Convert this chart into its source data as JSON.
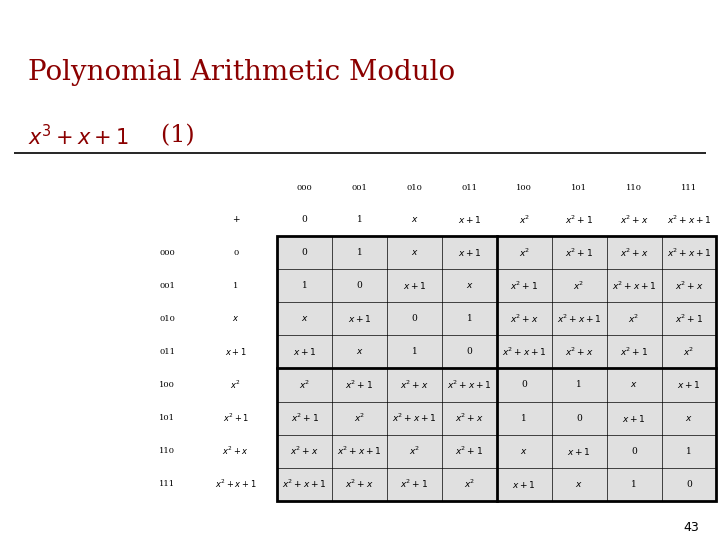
{
  "title_line1": "Polynomial Arithmetic Modulo",
  "title_line2_math": "$x^3+x+1$",
  "title_line2_text": "  (1)",
  "title_color": "#8B0000",
  "bg_color": "#ffffff",
  "slide_header_color1": "#9B9966",
  "slide_header_color2": "#800000",
  "page_number": "43",
  "col_headers_binary": [
    "000",
    "001",
    "010",
    "011",
    "100",
    "101",
    "110",
    "111"
  ],
  "col_headers_poly": [
    "0",
    "1",
    "$x$",
    "$x+1$",
    "$x^2$",
    "$x^2+1$",
    "$x^2+x$",
    "$x^2+x+1$"
  ],
  "row_headers_binary": [
    "000",
    "001",
    "010",
    "011",
    "100",
    "101",
    "110",
    "111"
  ],
  "row_headers_poly": [
    "0",
    "1",
    "$x$",
    "$x+1$",
    "$x^2$",
    "$x^2+1$",
    "$x^2+x$",
    "$x^2+x+1$"
  ],
  "operator": "+",
  "table_data": [
    [
      "0",
      "1",
      "$x$",
      "$x+1$",
      "$x^2$",
      "$x^2+1$",
      "$x^2+x$",
      "$x^2+x+1$"
    ],
    [
      "1",
      "0",
      "$x+1$",
      "$x$",
      "$x^2+1$",
      "$x^2$",
      "$x^2+x+1$",
      "$x^2+x$"
    ],
    [
      "$x$",
      "$x+1$",
      "0",
      "1",
      "$x^2+x$",
      "$x^2+x+1$",
      "$x^2$",
      "$x^2+1$"
    ],
    [
      "$x+1$",
      "$x$",
      "1",
      "0",
      "$x^2+x+1$",
      "$x^2+x$",
      "$x^2+1$",
      "$x^2$"
    ],
    [
      "$x^2$",
      "$x^2+1$",
      "$x^2+x$",
      "$x^2+x+1$",
      "0",
      "1",
      "$x$",
      "$x+1$"
    ],
    [
      "$x^2+1$",
      "$x^2$",
      "$x^2+x+1$",
      "$x^2+x$",
      "1",
      "0",
      "$x+1$",
      "$x$"
    ],
    [
      "$x^2+x$",
      "$x^2+x+1$",
      "$x^2$",
      "$x^2+1$",
      "$x$",
      "$x+1$",
      "0",
      "1"
    ],
    [
      "$x^2+x+1$",
      "$x^2+x$",
      "$x^2+1$",
      "$x^2$",
      "$x+1$",
      "$x$",
      "1",
      "0"
    ]
  ],
  "cell_bg": "#E0E0E0",
  "font_size_title": 20,
  "font_size_subtitle": 15,
  "font_size_table": 6.5,
  "font_size_header_bin": 6.0,
  "font_size_header_poly": 6.5
}
